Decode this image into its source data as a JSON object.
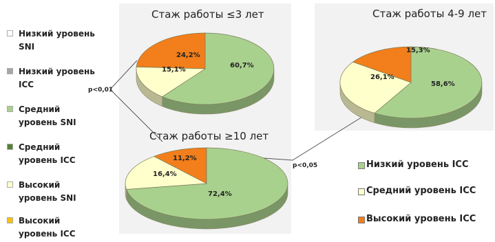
{
  "colors": {
    "low": "#a9d18e",
    "mid": "#ffffcc",
    "high": "#f27f1b"
  },
  "left_legend": [
    {
      "label": "Низкий уровень SNI",
      "color": "#ffffff"
    },
    {
      "label": "Низкий уровень ICC",
      "color": "#a6a6a6"
    },
    {
      "label": "Средний уровень SNI",
      "color": "#a9d18e"
    },
    {
      "label": "Средний уровень ICC",
      "color": "#548235"
    },
    {
      "label": "Высокий уровень SNI",
      "color": "#ffffcc"
    },
    {
      "label": "Высокий уровень ICC",
      "color": "#ffc000"
    }
  ],
  "right_legend": [
    {
      "label": "Низкий уровень ICC",
      "color": "#a9d18e"
    },
    {
      "label": "Средний уровень ICC",
      "color": "#ffffcc"
    },
    {
      "label": "Высокий уровень ICC",
      "color": "#f27f1b"
    }
  ],
  "p_values": {
    "top_left": "p<0,01",
    "right": "p<0,05"
  },
  "chart_data": [
    {
      "type": "pie",
      "title": "Стаж работы ≤3 лет",
      "slices": [
        {
          "name": "Высокий уровень ICC",
          "value": 24.2,
          "label": "24,2%",
          "colorKey": "high"
        },
        {
          "name": "Низкий уровень ICC",
          "value": 60.7,
          "label": "60,7%",
          "colorKey": "low"
        },
        {
          "name": "Средний уровень ICC",
          "value": 15.1,
          "label": "15,1%",
          "colorKey": "mid"
        }
      ]
    },
    {
      "type": "pie",
      "title": "Стаж работы 4-9 лет",
      "slices": [
        {
          "name": "Высокий уровень ICC",
          "value": 15.3,
          "label": "15,3%",
          "colorKey": "high"
        },
        {
          "name": "Низкий уровень ICC",
          "value": 58.6,
          "label": "58,6%",
          "colorKey": "low"
        },
        {
          "name": "Средний уровень ICC",
          "value": 26.1,
          "label": "26,1%",
          "colorKey": "mid"
        }
      ]
    },
    {
      "type": "pie",
      "title": "Стаж работы ≥10 лет",
      "slices": [
        {
          "name": "Высокий уровень ICC",
          "value": 11.2,
          "label": "11,2%",
          "colorKey": "high"
        },
        {
          "name": "Низкий уровень ICC",
          "value": 72.4,
          "label": "72,4%",
          "colorKey": "low"
        },
        {
          "name": "Средний уровень ICC",
          "value": 16.4,
          "label": "16,4%",
          "colorKey": "mid"
        }
      ]
    }
  ]
}
